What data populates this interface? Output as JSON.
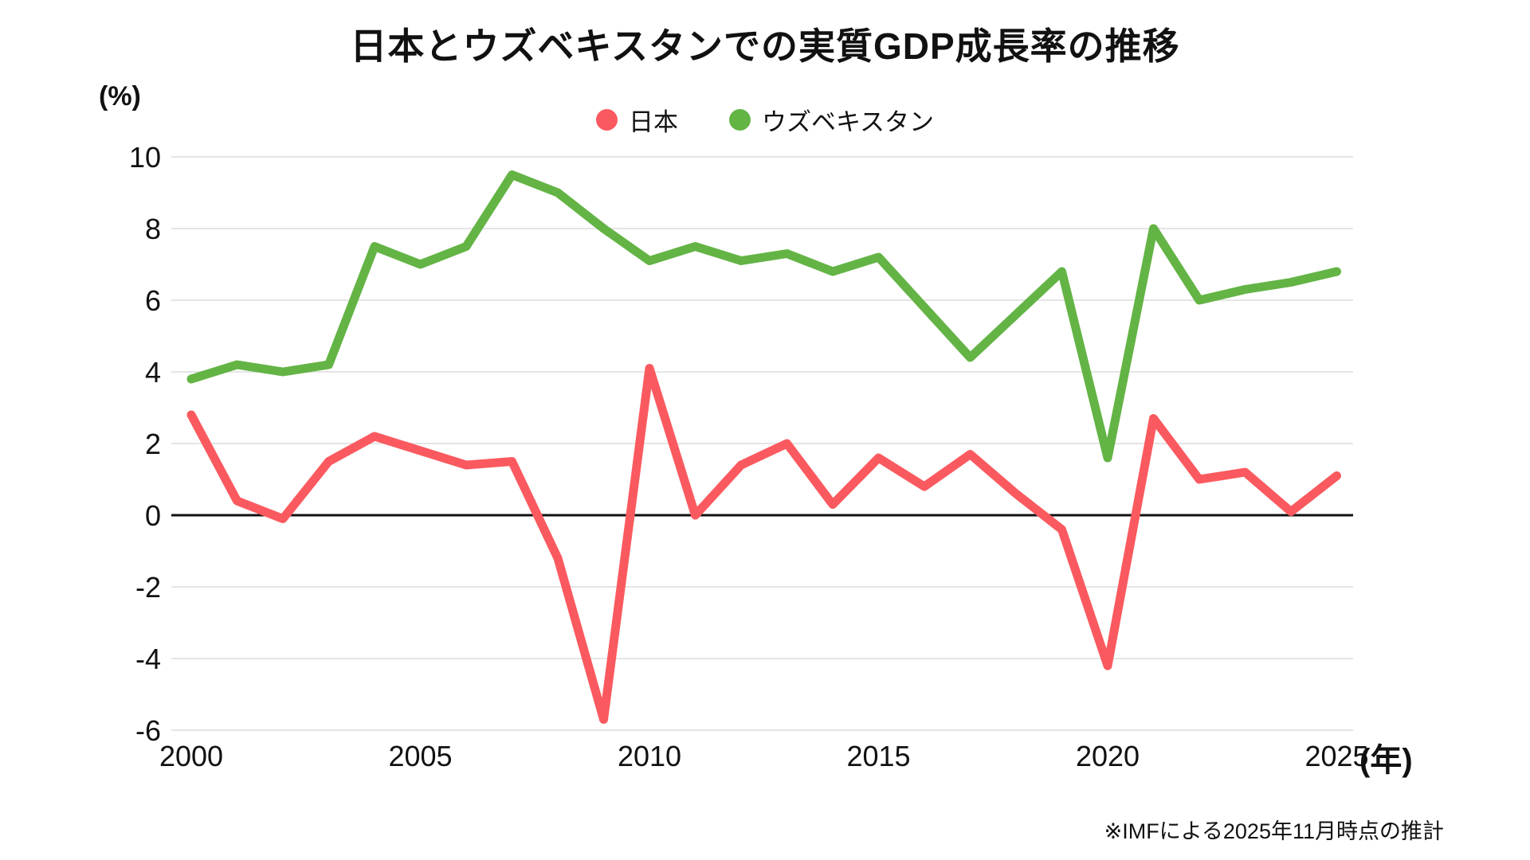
{
  "chart_data": {
    "type": "line",
    "title": "日本とウズベキスタンでの実質GDP成長率の推移",
    "ylabel": "(%)",
    "xlabel": "(年)",
    "x": [
      2000,
      2001,
      2002,
      2003,
      2004,
      2005,
      2006,
      2007,
      2008,
      2009,
      2010,
      2011,
      2012,
      2013,
      2014,
      2015,
      2016,
      2017,
      2018,
      2019,
      2020,
      2021,
      2022,
      2023,
      2024,
      2025
    ],
    "series": [
      {
        "name": "日本",
        "color": "#FA5A5F",
        "values": [
          2.8,
          0.4,
          -0.1,
          1.5,
          2.2,
          1.8,
          1.4,
          1.5,
          -1.2,
          -5.7,
          4.1,
          0.0,
          1.4,
          2.0,
          0.3,
          1.6,
          0.8,
          1.7,
          0.6,
          -0.4,
          -4.2,
          2.7,
          1.0,
          1.2,
          0.1,
          1.1
        ]
      },
      {
        "name": "ウズベキスタン",
        "color": "#63B445",
        "values": [
          3.8,
          4.2,
          4.0,
          4.2,
          7.5,
          7.0,
          7.5,
          9.5,
          9.0,
          8.0,
          7.1,
          7.5,
          7.1,
          7.3,
          6.8,
          7.2,
          5.8,
          4.4,
          5.6,
          6.8,
          1.6,
          8.0,
          6.0,
          6.3,
          6.5,
          6.8
        ]
      }
    ],
    "ylim": [
      -6,
      10
    ],
    "y_ticks": [
      10,
      8,
      6,
      4,
      2,
      0,
      -2,
      -4,
      -6
    ],
    "x_ticks": [
      2000,
      2005,
      2010,
      2015,
      2020,
      2025
    ],
    "grid": true,
    "legend_position": "top-center"
  },
  "note": "※IMFによる2025年11月時点の推計",
  "colors": {
    "grid": "#E5E5E5",
    "axis": "#111111",
    "text": "#111111",
    "background": "#FFFFFF"
  }
}
